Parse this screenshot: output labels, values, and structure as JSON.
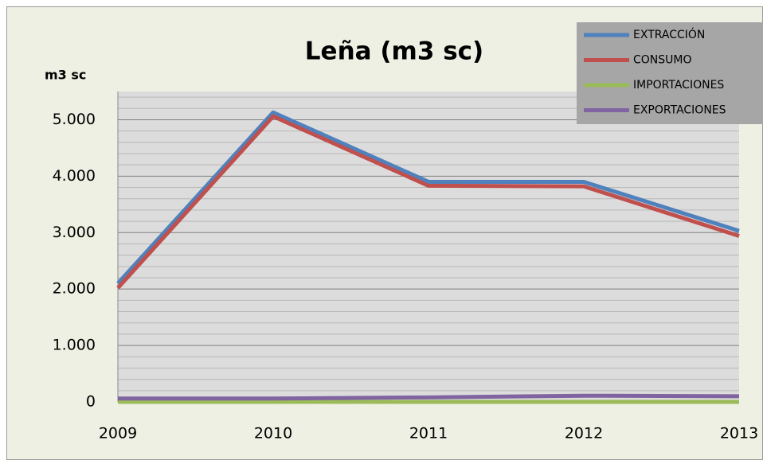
{
  "chart_data": {
    "type": "line",
    "title": "Leña (m3 sc)",
    "y_label": "m3 sc",
    "categories": [
      "2009",
      "2010",
      "2011",
      "2012",
      "2013"
    ],
    "series": [
      {
        "name": "EXTRACCIÓN",
        "color": "#4f81bd",
        "values": [
          2100,
          5130,
          3900,
          3900,
          3030
        ]
      },
      {
        "name": "CONSUMO",
        "color": "#c0504d",
        "values": [
          2020,
          5060,
          3830,
          3820,
          2940
        ]
      },
      {
        "name": "IMPORTACIONES",
        "color": "#9bbb59",
        "values": [
          0,
          0,
          0,
          0,
          0
        ]
      },
      {
        "name": "EXPORTACIONES",
        "color": "#8064a2",
        "values": [
          60,
          60,
          80,
          110,
          100
        ]
      }
    ],
    "ylim": [
      0,
      5500
    ],
    "yticks": [
      0,
      {
        "value": 1000,
        "label": "1.000"
      },
      {
        "value": 2000,
        "label": "2.000"
      },
      {
        "value": 3000,
        "label": "3.000"
      },
      {
        "value": 4000,
        "label": "4.000"
      },
      {
        "value": 5000,
        "label": "5.000"
      }
    ],
    "minor_yticks": [
      200,
      400,
      600,
      800,
      1200,
      1400,
      1600,
      1800,
      2200,
      2400,
      2600,
      2800,
      3200,
      3400,
      3600,
      3800,
      4200,
      4400,
      4600,
      4800,
      5200,
      5400
    ],
    "grid": true,
    "legend": "top-right"
  }
}
